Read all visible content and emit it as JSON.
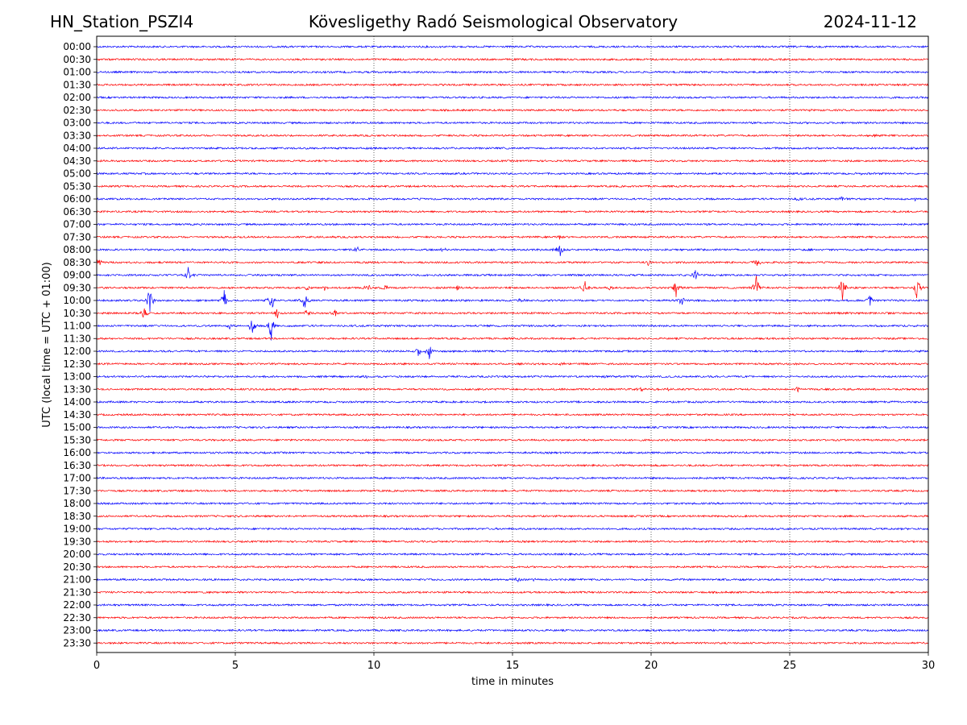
{
  "header": {
    "station": "HN_Station_PSZI4",
    "observatory": "Kövesligethy Radó Seismological Observatory",
    "date": "2024-11-12"
  },
  "chart_data": {
    "type": "line",
    "title": "Kövesligethy Radó Seismological Observatory",
    "xlabel": "time in minutes",
    "ylabel": "UTC (local time = UTC + 01:00)",
    "xlim": [
      0,
      30
    ],
    "x_ticks": [
      0,
      5,
      10,
      15,
      20,
      25,
      30
    ],
    "x_tick_labels": [
      "0",
      "5",
      "10",
      "15",
      "20",
      "25",
      "30"
    ],
    "vertical_gridlines": [
      5,
      10,
      15,
      20,
      25
    ],
    "grid": "x-only dotted",
    "trace_colors": [
      "#0000ff",
      "#ff0000"
    ],
    "rows": [
      "00:00",
      "00:30",
      "01:00",
      "01:30",
      "02:00",
      "02:30",
      "03:00",
      "03:30",
      "04:00",
      "04:30",
      "05:00",
      "05:30",
      "06:00",
      "06:30",
      "07:00",
      "07:30",
      "08:00",
      "08:30",
      "09:00",
      "09:30",
      "10:00",
      "10:30",
      "11:00",
      "11:30",
      "12:00",
      "12:30",
      "13:00",
      "13:30",
      "14:00",
      "14:30",
      "15:00",
      "15:30",
      "16:00",
      "16:30",
      "17:00",
      "17:30",
      "18:00",
      "18:30",
      "19:00",
      "19:30",
      "20:00",
      "20:30",
      "21:00",
      "21:30",
      "22:00",
      "22:30",
      "23:00",
      "23:30"
    ],
    "events": [
      {
        "row": "02:30",
        "minute": 25.7,
        "amplitude": 0.3
      },
      {
        "row": "03:30",
        "minute": 28.0,
        "amplitude": 0.3
      },
      {
        "row": "04:00",
        "minute": 24.5,
        "amplitude": 0.2
      },
      {
        "row": "05:00",
        "minute": 27.5,
        "amplitude": 0.25
      },
      {
        "row": "06:00",
        "minute": 25.3,
        "amplitude": 0.35
      },
      {
        "row": "06:00",
        "minute": 26.9,
        "amplitude": 0.35
      },
      {
        "row": "06:00",
        "minute": 29.5,
        "amplitude": 0.35
      },
      {
        "row": "07:30",
        "minute": 16.7,
        "amplitude": 0.3
      },
      {
        "row": "08:00",
        "minute": 9.4,
        "amplitude": 0.5
      },
      {
        "row": "08:00",
        "minute": 12.5,
        "amplitude": 0.3
      },
      {
        "row": "08:00",
        "minute": 16.7,
        "amplitude": 1.6
      },
      {
        "row": "08:30",
        "minute": 0.1,
        "amplitude": 0.7
      },
      {
        "row": "08:30",
        "minute": 19.9,
        "amplitude": 0.6
      },
      {
        "row": "08:30",
        "minute": 23.8,
        "amplitude": 0.9
      },
      {
        "row": "09:00",
        "minute": 3.3,
        "amplitude": 1.2
      },
      {
        "row": "09:00",
        "minute": 21.6,
        "amplitude": 0.9
      },
      {
        "row": "09:30",
        "minute": 7.6,
        "amplitude": 0.7
      },
      {
        "row": "09:30",
        "minute": 8.2,
        "amplitude": 0.5
      },
      {
        "row": "09:30",
        "minute": 9.8,
        "amplitude": 0.8
      },
      {
        "row": "09:30",
        "minute": 10.4,
        "amplitude": 0.6
      },
      {
        "row": "09:30",
        "minute": 13.0,
        "amplitude": 0.5
      },
      {
        "row": "09:30",
        "minute": 17.6,
        "amplitude": 1.5
      },
      {
        "row": "09:30",
        "minute": 18.5,
        "amplitude": 0.5
      },
      {
        "row": "09:30",
        "minute": 20.9,
        "amplitude": 1.5
      },
      {
        "row": "09:30",
        "minute": 23.8,
        "amplitude": 2.2
      },
      {
        "row": "09:30",
        "minute": 26.9,
        "amplitude": 2.0
      },
      {
        "row": "09:30",
        "minute": 29.6,
        "amplitude": 2.0
      },
      {
        "row": "10:00",
        "minute": 1.9,
        "amplitude": 2.3
      },
      {
        "row": "10:00",
        "minute": 4.6,
        "amplitude": 1.8
      },
      {
        "row": "10:00",
        "minute": 6.3,
        "amplitude": 1.8
      },
      {
        "row": "10:00",
        "minute": 7.5,
        "amplitude": 1.5
      },
      {
        "row": "10:00",
        "minute": 15.3,
        "amplitude": 0.4
      },
      {
        "row": "10:00",
        "minute": 21.1,
        "amplitude": 1.2
      },
      {
        "row": "10:00",
        "minute": 27.9,
        "amplitude": 1.2
      },
      {
        "row": "10:30",
        "minute": 1.7,
        "amplitude": 1.5
      },
      {
        "row": "10:30",
        "minute": 6.5,
        "amplitude": 0.9
      },
      {
        "row": "10:30",
        "minute": 7.6,
        "amplitude": 0.9
      },
      {
        "row": "10:30",
        "minute": 8.6,
        "amplitude": 0.8
      },
      {
        "row": "11:00",
        "minute": 4.8,
        "amplitude": 0.8
      },
      {
        "row": "11:00",
        "minute": 5.6,
        "amplitude": 1.5
      },
      {
        "row": "11:00",
        "minute": 6.3,
        "amplitude": 2.2
      },
      {
        "row": "12:00",
        "minute": 11.6,
        "amplitude": 1.2
      },
      {
        "row": "12:00",
        "minute": 12.0,
        "amplitude": 1.2
      },
      {
        "row": "12:30",
        "minute": 16.8,
        "amplitude": 0.3
      },
      {
        "row": "13:00",
        "minute": 9.7,
        "amplitude": 0.3
      },
      {
        "row": "13:00",
        "minute": 18.4,
        "amplitude": 0.3
      },
      {
        "row": "13:30",
        "minute": 19.6,
        "amplitude": 0.5
      },
      {
        "row": "13:30",
        "minute": 20.6,
        "amplitude": 0.4
      },
      {
        "row": "13:30",
        "minute": 25.3,
        "amplitude": 0.5
      },
      {
        "row": "14:00",
        "minute": 28.8,
        "amplitude": 0.2
      },
      {
        "row": "21:00",
        "minute": 15.2,
        "amplitude": 0.4
      },
      {
        "row": "21:00",
        "minute": 15.8,
        "amplitude": 0.4
      },
      {
        "row": "21:30",
        "minute": 3.9,
        "amplitude": 0.2
      }
    ]
  }
}
